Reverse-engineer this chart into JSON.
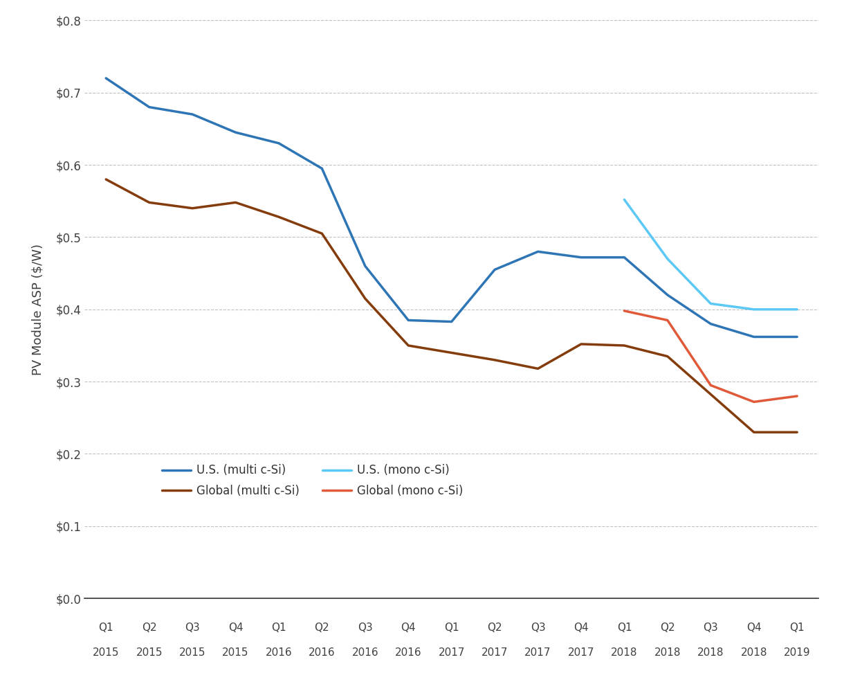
{
  "x_labels_q": [
    "Q1",
    "Q2",
    "Q3",
    "Q4",
    "Q1",
    "Q2",
    "Q3",
    "Q4",
    "Q1",
    "Q2",
    "Q3",
    "Q4",
    "Q1",
    "Q2",
    "Q3",
    "Q4",
    "Q1"
  ],
  "x_labels_yr": [
    "2015",
    "2015",
    "2015",
    "2015",
    "2016",
    "2016",
    "2016",
    "2016",
    "2017",
    "2017",
    "2017",
    "2017",
    "2018",
    "2018",
    "2018",
    "2018",
    "2019"
  ],
  "us_multi": [
    0.72,
    0.68,
    0.67,
    0.645,
    0.63,
    0.595,
    0.46,
    0.385,
    0.383,
    0.455,
    0.48,
    0.472,
    0.472,
    0.42,
    0.38,
    0.362,
    0.362
  ],
  "global_multi": [
    0.58,
    0.548,
    0.54,
    0.548,
    0.528,
    0.505,
    0.415,
    0.35,
    0.34,
    0.33,
    0.318,
    0.352,
    0.35,
    0.335,
    null,
    0.23,
    0.23
  ],
  "us_mono": [
    null,
    null,
    null,
    null,
    null,
    null,
    null,
    null,
    null,
    null,
    null,
    null,
    0.552,
    0.47,
    0.408,
    0.4,
    0.4
  ],
  "global_mono": [
    null,
    null,
    null,
    null,
    null,
    null,
    null,
    null,
    null,
    null,
    null,
    null,
    0.398,
    0.385,
    0.295,
    0.272,
    0.28
  ],
  "us_multi_color": "#2E75B6",
  "global_multi_color": "#843C0C",
  "us_mono_color": "#5BC8F5",
  "global_mono_color": "#E05A3A",
  "ylim": [
    0.0,
    0.8
  ],
  "yticks": [
    0.0,
    0.1,
    0.2,
    0.3,
    0.4,
    0.5,
    0.6,
    0.7,
    0.8
  ],
  "ylabel": "PV Module ASP ($/W)",
  "legend_us_multi": "U.S. (multi c-Si)",
  "legend_global_multi": "Global (multi c-Si)",
  "legend_us_mono": "U.S. (mono c-Si)",
  "legend_global_mono": "Global (mono c-Si)",
  "linewidth": 2.5,
  "background_color": "#ffffff",
  "grid_color": "#c0c0c0"
}
